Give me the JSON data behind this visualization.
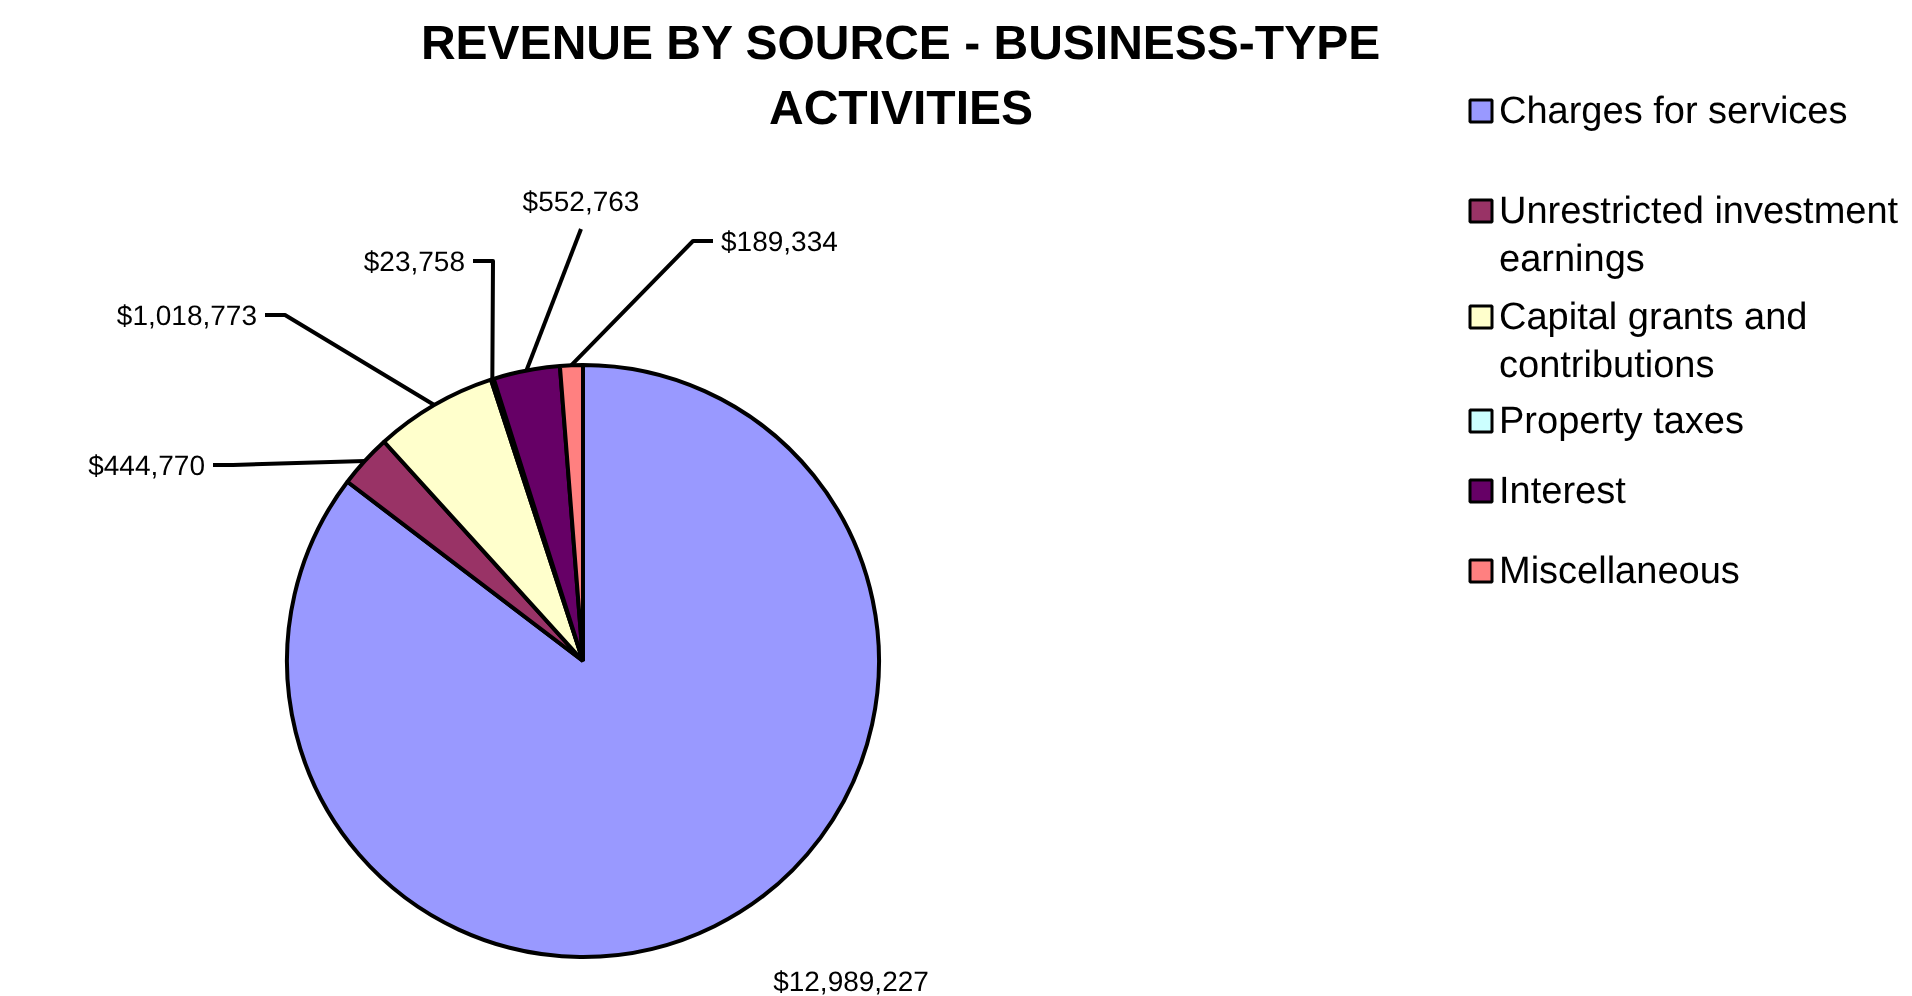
{
  "chart_data": {
    "type": "pie",
    "title": "REVENUE BY SOURCE - BUSINESS-TYPE ACTIVITIES",
    "categories": [
      "Charges for services",
      "Unrestricted investment earnings",
      "Capital grants and contributions",
      "Property taxes",
      "Interest",
      "Miscellaneous"
    ],
    "values": [
      12989227,
      444770,
      1018773,
      23758,
      552763,
      189334
    ],
    "colors": [
      "#9999ff",
      "#993366",
      "#ffffcc",
      "#ccffff",
      "#660066",
      "#ff8080"
    ],
    "value_labels": [
      "$12,989,227",
      "$444,770",
      "$1,018,773",
      "$23,758",
      "$552,763",
      "$189,334"
    ],
    "legend": "right"
  }
}
